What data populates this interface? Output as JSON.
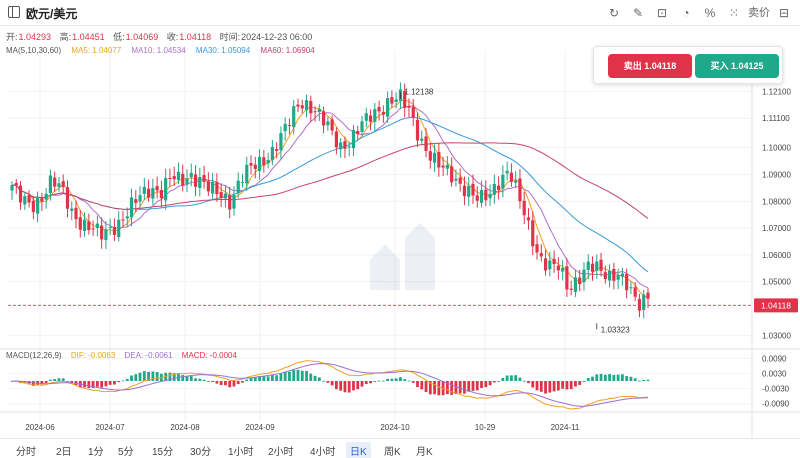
{
  "header": {
    "title": "欧元/美元",
    "tools": [
      {
        "name": "refresh-icon",
        "glyph": "↻"
      },
      {
        "name": "edit-icon",
        "glyph": "✎"
      },
      {
        "name": "bag-icon",
        "glyph": "⊡"
      },
      {
        "name": "pie-icon",
        "glyph": "◔"
      },
      {
        "name": "percent-icon",
        "glyph": "%"
      },
      {
        "name": "grid-icon",
        "glyph": "⁙"
      },
      {
        "name": "sell-label",
        "glyph": "卖价"
      },
      {
        "name": "ruler-icon",
        "glyph": "⊟"
      }
    ]
  },
  "ohlc": {
    "open_label": "开:",
    "open": "1.04293",
    "high_label": "高:",
    "high": "1.04451",
    "low_label": "低:",
    "low": "1.04069",
    "close_label": "收:",
    "close": "1.04118",
    "time_label": "时间:",
    "time": "2024-12-23 06:00"
  },
  "ma_legend": {
    "label": "MA(5,10,30,60)",
    "ma5": "MA5: 1.04077",
    "ma10": "MA10: 1.04534",
    "ma30": "MA30: 1.05094",
    "ma60": "MA60: 1.06904"
  },
  "trade": {
    "sell": "卖出 1.04118",
    "buy": "买入 1.04125"
  },
  "macd_legend": {
    "label": "MACD(12,26,9)",
    "dif": "DIF: -0.0063",
    "dea": "DEA: -0.0061",
    "macd": "MACD: -0.0004"
  },
  "intervals": [
    "分时",
    "2日",
    "1分",
    "5分",
    "15分",
    "30分",
    "1小时",
    "2小时",
    "4小时",
    "日K",
    "周K",
    "月K"
  ],
  "active_interval": "日K",
  "colors": {
    "up": "#1fa889",
    "down": "#e0334a",
    "ma5": "#f0a020",
    "ma10": "#b070c8",
    "ma30": "#3a9ad9",
    "ma60": "#c8436a",
    "dif": "#f0a020",
    "dea": "#9b6fd0"
  },
  "chart_data": {
    "type": "candlestick",
    "price_ticks": [
      "1.12100",
      "1.11100",
      "1.10000",
      "1.09000",
      "1.08000",
      "1.07000",
      "1.06000",
      "1.05000",
      "1.03000"
    ],
    "price_tick_values": [
      1.121,
      1.111,
      1.1,
      1.09,
      1.08,
      1.07,
      1.06,
      1.05,
      1.03
    ],
    "current_price_label": "1.04118",
    "current_price": 1.04118,
    "high_annotation": "1.12138",
    "low_annotation": "1.03323",
    "macd_ticks": [
      "0.0090",
      "0.0030",
      "-0.0030",
      "-0.0090"
    ],
    "macd_tick_values": [
      0.009,
      0.003,
      -0.003,
      -0.009
    ],
    "x_labels": [
      "2024-06",
      "2024-07",
      "2024-08",
      "2024-09",
      "2024-10",
      "10-29",
      "2024-11"
    ],
    "price_range": [
      1.026,
      1.126
    ],
    "macd_range": [
      -0.0115,
      0.0115
    ],
    "close_path": [
      1.086,
      1.08,
      1.078,
      1.082,
      1.088,
      1.084,
      1.076,
      1.072,
      1.07,
      1.067,
      1.07,
      1.073,
      1.078,
      1.082,
      1.085,
      1.084,
      1.089,
      1.087,
      1.09,
      1.088,
      1.084,
      1.082,
      1.08,
      1.089,
      1.092,
      1.094,
      1.098,
      1.104,
      1.11,
      1.117,
      1.116,
      1.112,
      1.106,
      1.1,
      1.103,
      1.108,
      1.111,
      1.114,
      1.118,
      1.119,
      1.113,
      1.104,
      1.098,
      1.093,
      1.09,
      1.087,
      1.084,
      1.08,
      1.082,
      1.088,
      1.092,
      1.081,
      1.07,
      1.06,
      1.056,
      1.055,
      1.047,
      1.052,
      1.056,
      1.054,
      1.052,
      1.054,
      1.048,
      1.04,
      1.045
    ]
  }
}
